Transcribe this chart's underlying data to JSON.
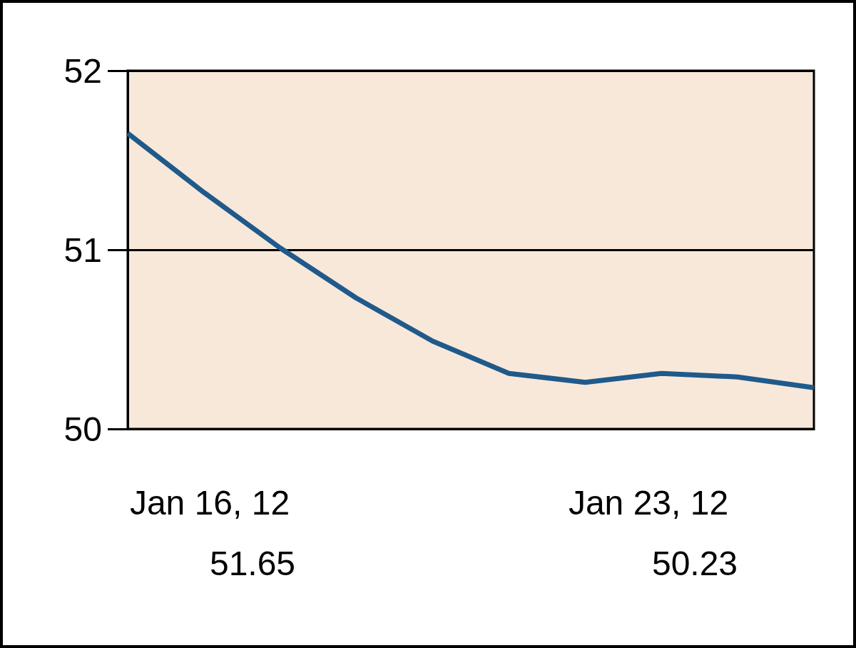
{
  "chart_data": {
    "type": "line",
    "categories": [
      null,
      null,
      null,
      null,
      null,
      null,
      null,
      null,
      null,
      null
    ],
    "series": [
      {
        "color": "#1f5a8a",
        "values": [
          51.65,
          51.32,
          51.01,
          50.73,
          50.49,
          50.31,
          50.26,
          50.31,
          50.29,
          50.23
        ]
      }
    ],
    "ylim": [
      50,
      52
    ],
    "yticks": [
      50,
      51,
      52
    ],
    "grid": "y",
    "marker": "none",
    "line_style": "solid",
    "annotations": [
      "Jan 16, 12",
      "51.65",
      "Jan 23, 12",
      "50.23"
    ]
  }
}
